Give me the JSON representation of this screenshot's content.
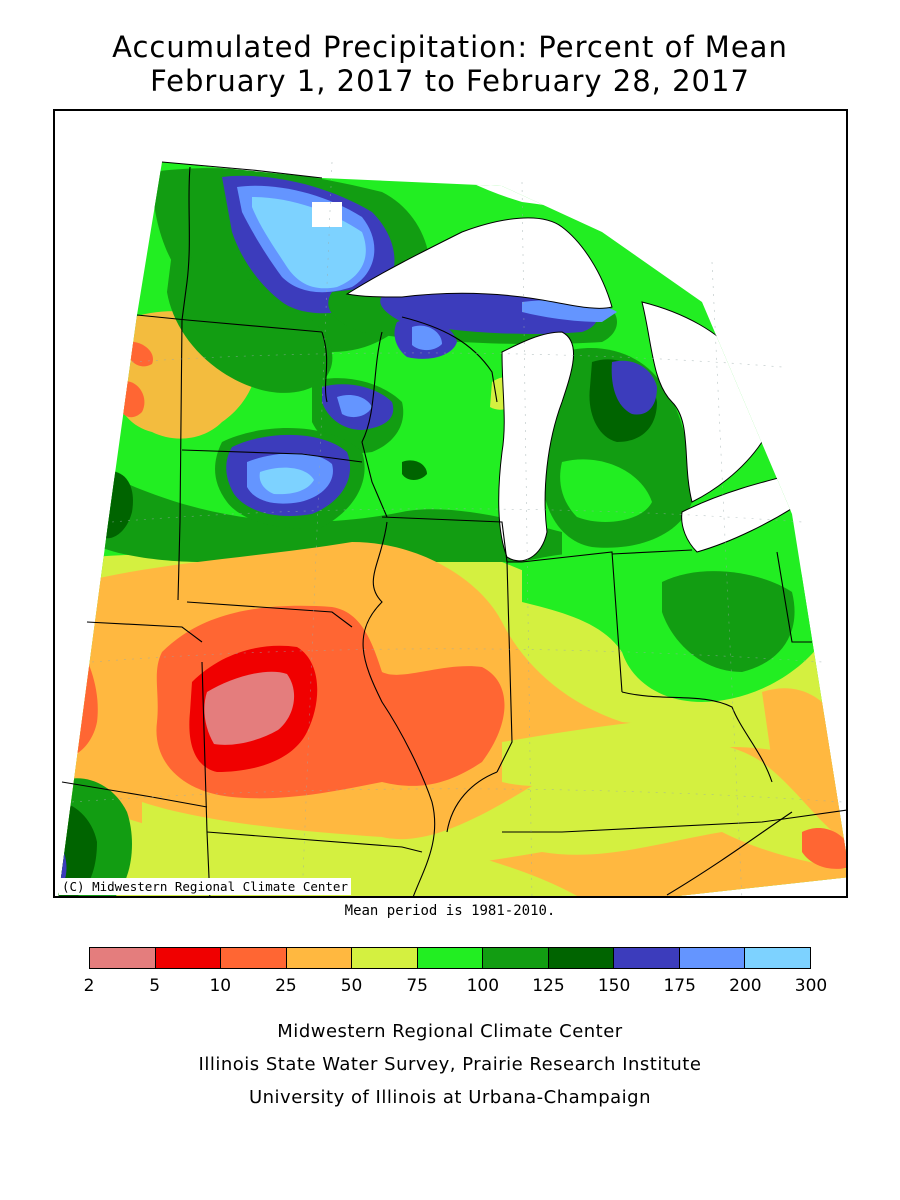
{
  "title_line1": "Accumulated Precipitation: Percent of Mean",
  "title_line2": "February 1, 2017 to February 28, 2017",
  "copyright": "(C) Midwestern Regional Climate Center",
  "mean_period": "Mean period is 1981-2010.",
  "legend": {
    "colors": [
      "#e47d7d",
      "#f00000",
      "#ff6633",
      "#ffb840",
      "#d4f040",
      "#22ee22",
      "#129d12",
      "#006400",
      "#3c3cbc",
      "#6495ff",
      "#7dd2ff"
    ],
    "ticks": [
      "2",
      "5",
      "10",
      "25",
      "50",
      "75",
      "100",
      "125",
      "150",
      "175",
      "200",
      "300"
    ]
  },
  "footer": {
    "line1": "Midwestern Regional Climate Center",
    "line2": "Illinois State Water Survey, Prairie Research Institute",
    "line3": "University of Illinois at Urbana-Champaign"
  }
}
